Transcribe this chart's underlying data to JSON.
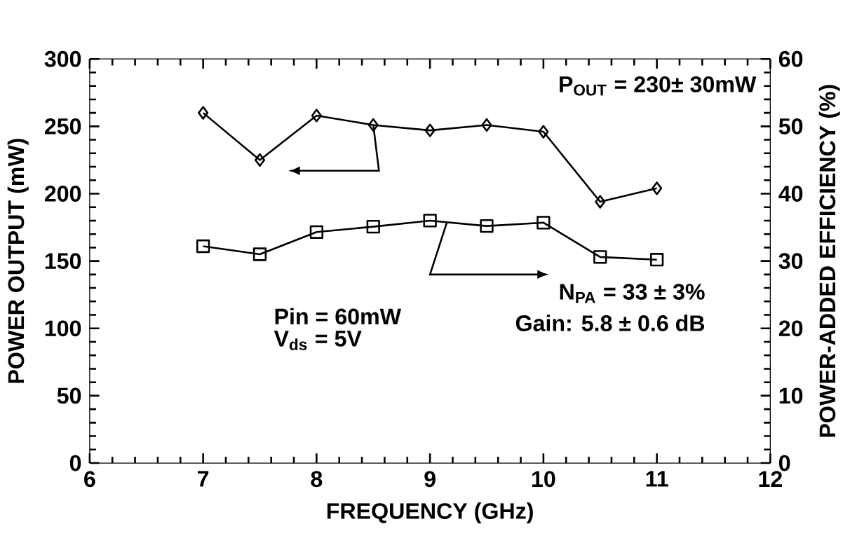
{
  "chart_data": {
    "type": "line",
    "xlabel": "FREQUENCY (GHz)",
    "ylabel": "POWER OUTPUT (mW)",
    "y2label": "POWER-ADDED EFFICIENCY (%)",
    "x": [
      7,
      7.5,
      8,
      8.5,
      9,
      9.5,
      10,
      10.5,
      11
    ],
    "series": [
      {
        "color": "#000000",
        "marker": "diamond",
        "values": [
          260,
          225,
          258,
          251,
          247,
          251,
          246,
          194,
          204
        ]
      },
      {
        "color": "#000000",
        "marker": "square",
        "axis": "y2",
        "values": [
          32.2,
          31,
          34.3,
          35.1,
          36,
          35.2,
          35.7,
          30.6,
          30.2
        ]
      }
    ],
    "xlim": [
      6,
      12
    ],
    "xticks": [
      6,
      7,
      8,
      9,
      10,
      11,
      12
    ],
    "ylim": [
      0,
      300
    ],
    "yticks": [
      0,
      50,
      100,
      150,
      200,
      250,
      300
    ],
    "y2lim": [
      0,
      60
    ],
    "y2ticks": [
      0,
      10,
      20,
      30,
      40,
      50,
      60
    ],
    "grid": false,
    "line_style": "solid",
    "annotations": [
      "P$_{OUT}$ = 230± 30mW",
      "N$_{PA}$ = 33 ± 3%",
      "Gain:  5.8 ± 0.6 dB",
      "Pin = 60mW",
      "V$_{ds}$ = 5V"
    ]
  }
}
